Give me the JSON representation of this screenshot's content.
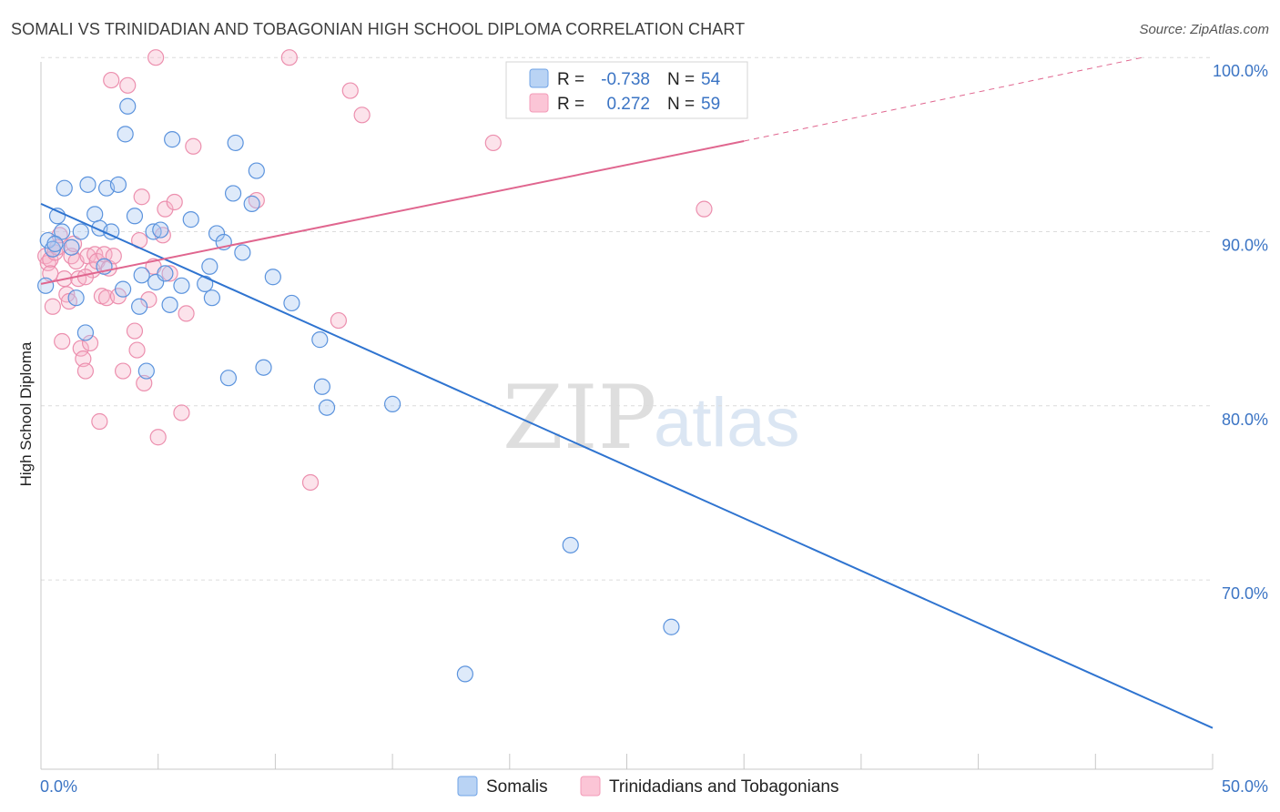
{
  "header": {
    "title": "SOMALI VS TRINIDADIAN AND TOBAGONIAN HIGH SCHOOL DIPLOMA CORRELATION CHART",
    "source": "Source: ZipAtlas.com"
  },
  "watermark": {
    "zip": "ZIP",
    "atlas": "atlas"
  },
  "legend": {
    "r_label": "R =",
    "n_label": "N =",
    "rows": [
      {
        "r": "-0.738",
        "n": "54"
      },
      {
        "r": "0.272",
        "n": "59"
      }
    ]
  },
  "bottom_legend": [
    "Somalis",
    "Trinidadians and Tobagonians"
  ],
  "chart_data": {
    "type": "scatter",
    "title": "SOMALI VS TRINIDADIAN AND TOBAGONIAN HIGH SCHOOL DIPLOMA CORRELATION CHART",
    "xlabel": "",
    "ylabel": "High School Diploma",
    "xlim": [
      0,
      50
    ],
    "ylim": [
      61.5,
      102
    ],
    "x_tick_labels": [
      "0.0%",
      "50.0%"
    ],
    "y_ticks": [
      70,
      80,
      90,
      100
    ],
    "y_tick_labels": [
      "70.0%",
      "80.0%",
      "90.0%",
      "100.0%"
    ],
    "grid": "horizontal dashed",
    "legend_position": "top-center",
    "colors": {
      "somalis": "#6fa3e6",
      "trinidadians": "#f39bb8",
      "somalis_line": "#2f74d0",
      "trinidadians_line": "#e0668f"
    },
    "series": [
      {
        "name": "Somalis",
        "r": -0.738,
        "n": 54,
        "trend": {
          "x": [
            0,
            50
          ],
          "y": [
            91.6,
            61.5
          ]
        },
        "points": [
          [
            0.2,
            86.9
          ],
          [
            0.3,
            89.5
          ],
          [
            0.5,
            89.0
          ],
          [
            0.7,
            90.9
          ],
          [
            0.9,
            90.0
          ],
          [
            1.0,
            92.5
          ],
          [
            1.3,
            89.1
          ],
          [
            1.5,
            86.2
          ],
          [
            1.7,
            90.0
          ],
          [
            1.9,
            84.2
          ],
          [
            2.0,
            92.7
          ],
          [
            2.3,
            91.0
          ],
          [
            2.5,
            90.2
          ],
          [
            2.7,
            88.0
          ],
          [
            2.8,
            92.5
          ],
          [
            3.0,
            90.0
          ],
          [
            3.3,
            92.7
          ],
          [
            3.5,
            86.7
          ],
          [
            3.6,
            95.6
          ],
          [
            3.7,
            97.2
          ],
          [
            4.0,
            90.9
          ],
          [
            4.2,
            85.7
          ],
          [
            4.3,
            87.5
          ],
          [
            4.5,
            82.0
          ],
          [
            4.8,
            90.0
          ],
          [
            4.9,
            87.1
          ],
          [
            5.1,
            90.1
          ],
          [
            5.3,
            87.6
          ],
          [
            5.5,
            85.8
          ],
          [
            5.6,
            95.3
          ],
          [
            6.0,
            86.9
          ],
          [
            6.4,
            90.7
          ],
          [
            7.0,
            87.0
          ],
          [
            7.2,
            88.0
          ],
          [
            7.3,
            86.2
          ],
          [
            7.5,
            89.9
          ],
          [
            7.8,
            89.4
          ],
          [
            8.0,
            81.6
          ],
          [
            8.2,
            92.2
          ],
          [
            8.3,
            95.1
          ],
          [
            8.6,
            88.8
          ],
          [
            9.0,
            91.6
          ],
          [
            9.2,
            93.5
          ],
          [
            9.5,
            82.2
          ],
          [
            9.9,
            87.4
          ],
          [
            10.7,
            85.9
          ],
          [
            11.9,
            83.8
          ],
          [
            12.0,
            81.1
          ],
          [
            12.2,
            79.9
          ],
          [
            15.0,
            80.1
          ],
          [
            18.1,
            64.6
          ],
          [
            22.6,
            72.0
          ],
          [
            26.9,
            67.3
          ],
          [
            0.6,
            89.3
          ]
        ]
      },
      {
        "name": "Trinidadians and Tobagonians",
        "r": 0.272,
        "n": 59,
        "trend": {
          "x": [
            0,
            30
          ],
          "y": [
            87.0,
            95.2
          ]
        },
        "trend_dashed": {
          "x": [
            30,
            47
          ],
          "y": [
            95.2,
            100
          ]
        },
        "points": [
          [
            0.2,
            88.6
          ],
          [
            0.3,
            88.2
          ],
          [
            0.4,
            88.4
          ],
          [
            0.5,
            85.7
          ],
          [
            0.6,
            88.8
          ],
          [
            0.7,
            89.1
          ],
          [
            0.8,
            89.8
          ],
          [
            0.9,
            83.7
          ],
          [
            1.0,
            87.3
          ],
          [
            1.1,
            86.4
          ],
          [
            1.2,
            86.0
          ],
          [
            1.3,
            88.6
          ],
          [
            1.4,
            89.3
          ],
          [
            1.5,
            88.3
          ],
          [
            1.6,
            87.3
          ],
          [
            1.7,
            83.3
          ],
          [
            1.8,
            82.7
          ],
          [
            1.9,
            82.0
          ],
          [
            2.0,
            88.6
          ],
          [
            2.1,
            83.6
          ],
          [
            2.2,
            87.8
          ],
          [
            2.3,
            88.7
          ],
          [
            2.4,
            88.3
          ],
          [
            2.5,
            79.1
          ],
          [
            2.6,
            86.3
          ],
          [
            2.7,
            88.7
          ],
          [
            2.8,
            86.2
          ],
          [
            2.9,
            87.9
          ],
          [
            3.0,
            98.7
          ],
          [
            3.1,
            88.6
          ],
          [
            3.3,
            86.3
          ],
          [
            3.5,
            82.0
          ],
          [
            3.7,
            98.4
          ],
          [
            4.0,
            84.3
          ],
          [
            4.1,
            83.2
          ],
          [
            4.2,
            89.5
          ],
          [
            4.3,
            92.0
          ],
          [
            4.4,
            81.3
          ],
          [
            4.6,
            86.1
          ],
          [
            4.8,
            88.0
          ],
          [
            4.9,
            100.0
          ],
          [
            5.0,
            78.2
          ],
          [
            5.2,
            89.8
          ],
          [
            5.3,
            91.3
          ],
          [
            5.5,
            87.6
          ],
          [
            5.7,
            91.7
          ],
          [
            6.0,
            79.6
          ],
          [
            6.2,
            85.3
          ],
          [
            6.5,
            94.9
          ],
          [
            9.2,
            91.8
          ],
          [
            10.6,
            100.0
          ],
          [
            11.5,
            75.6
          ],
          [
            12.7,
            84.9
          ],
          [
            13.2,
            98.1
          ],
          [
            13.7,
            96.7
          ],
          [
            19.3,
            95.1
          ],
          [
            28.3,
            91.3
          ],
          [
            0.4,
            87.6
          ],
          [
            1.9,
            87.4
          ]
        ]
      }
    ]
  }
}
